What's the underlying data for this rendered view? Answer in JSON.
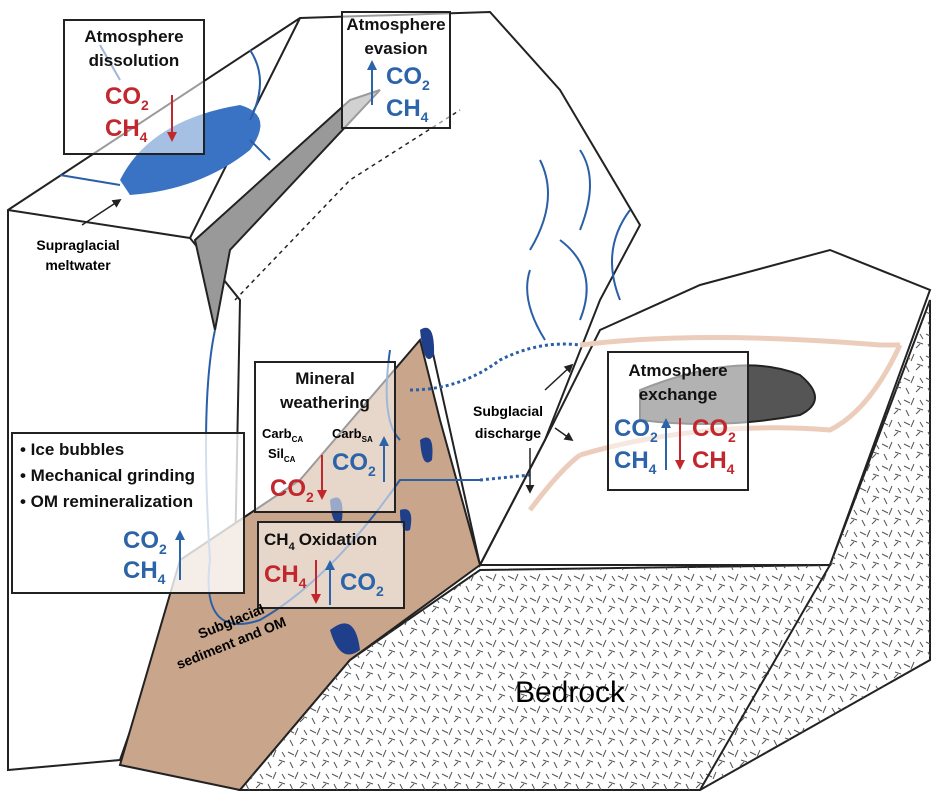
{
  "atmosphere_dissolution": {
    "title_lines": [
      "Atmosphere",
      "dissolution"
    ],
    "co2": {
      "base": "CO",
      "sub": "2"
    },
    "ch4": {
      "base": "CH",
      "sub": "4"
    }
  },
  "atmosphere_evasion": {
    "title_lines": [
      "Atmosphere",
      "evasion"
    ],
    "co2": {
      "base": "CO",
      "sub": "2"
    },
    "ch4": {
      "base": "CH",
      "sub": "4"
    }
  },
  "supraglacial_meltwater": [
    "Supraglacial",
    "meltwater"
  ],
  "ice_processes": {
    "items": [
      "• Ice bubbles",
      "• Mechanical grinding",
      "• OM remineralization"
    ],
    "co2": {
      "base": "CO",
      "sub": "2"
    },
    "ch4": {
      "base": "CH",
      "sub": "4"
    }
  },
  "mineral_weathering": {
    "title_lines": [
      "Mineral",
      "weathering"
    ],
    "carb_ca": {
      "base": "Carb",
      "sub": "CA"
    },
    "sil_ca": {
      "base": "Sil",
      "sub": "CA"
    },
    "carb_sa": {
      "base": "Carb",
      "sub": "SA"
    },
    "co2_consumed": {
      "base": "CO",
      "sub": "2"
    },
    "co2_produced": {
      "base": "CO",
      "sub": "2"
    }
  },
  "ch4_oxidation": {
    "title": {
      "base": "CH",
      "sub": "4",
      "rest": "Oxidation"
    },
    "ch4": {
      "base": "CH",
      "sub": "4"
    },
    "co2": {
      "base": "CO",
      "sub": "2"
    }
  },
  "subglacial_discharge": [
    "Subglacial",
    "discharge"
  ],
  "atmosphere_exchange": {
    "title_lines": [
      "Atmosphere",
      "exchange"
    ],
    "co2_out": {
      "base": "CO",
      "sub": "2"
    },
    "ch4_out": {
      "base": "CH",
      "sub": "4"
    },
    "co2_in": {
      "base": "CO",
      "sub": "2"
    },
    "ch4_in": {
      "base": "CH",
      "sub": "4"
    }
  },
  "subglacial_sediment": [
    "Subglacial",
    "sediment and OM"
  ],
  "bedrock": "Bedrock"
}
